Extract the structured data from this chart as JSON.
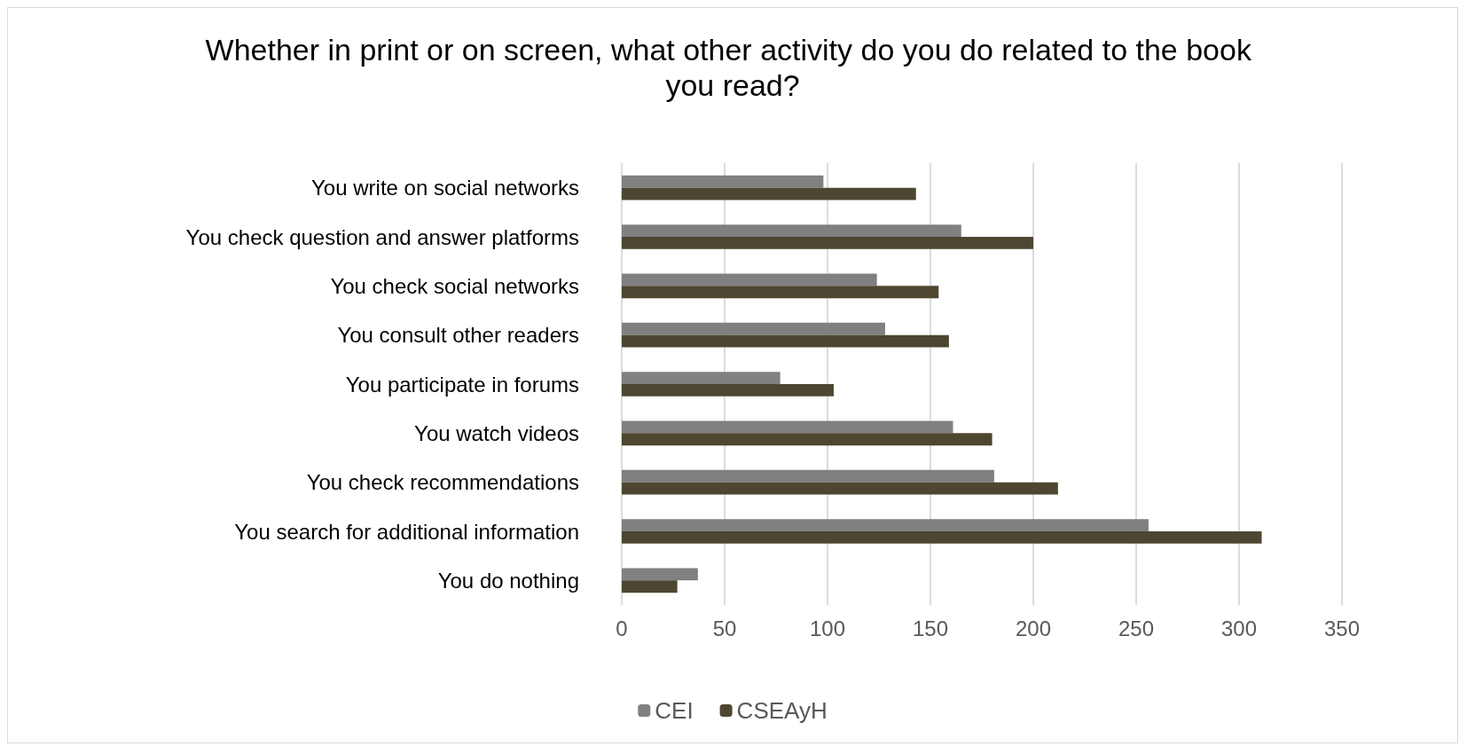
{
  "chart_data": {
    "type": "bar",
    "orientation": "horizontal",
    "title": "Whether in print or on screen, what other activity do you do related to the book you read?",
    "categories": [
      "You write on social networks",
      "You check question and answer platforms",
      "You check social networks",
      "You consult other readers",
      "You participate in forums",
      "You watch videos",
      "You check recommendations",
      "You search for additional information",
      "You do nothing"
    ],
    "series": [
      {
        "name": "CEI",
        "color": "#808080",
        "values": [
          98,
          165,
          124,
          128,
          77,
          161,
          181,
          256,
          37
        ]
      },
      {
        "name": "CSEAyH",
        "color": "#4d4631",
        "values": [
          143,
          200,
          154,
          159,
          103,
          180,
          212,
          311,
          27
        ]
      }
    ],
    "xlim": [
      0,
      350
    ],
    "xticks": [
      0,
      50,
      100,
      150,
      200,
      250,
      300,
      350
    ],
    "grid": "x",
    "legend": "bottom"
  }
}
